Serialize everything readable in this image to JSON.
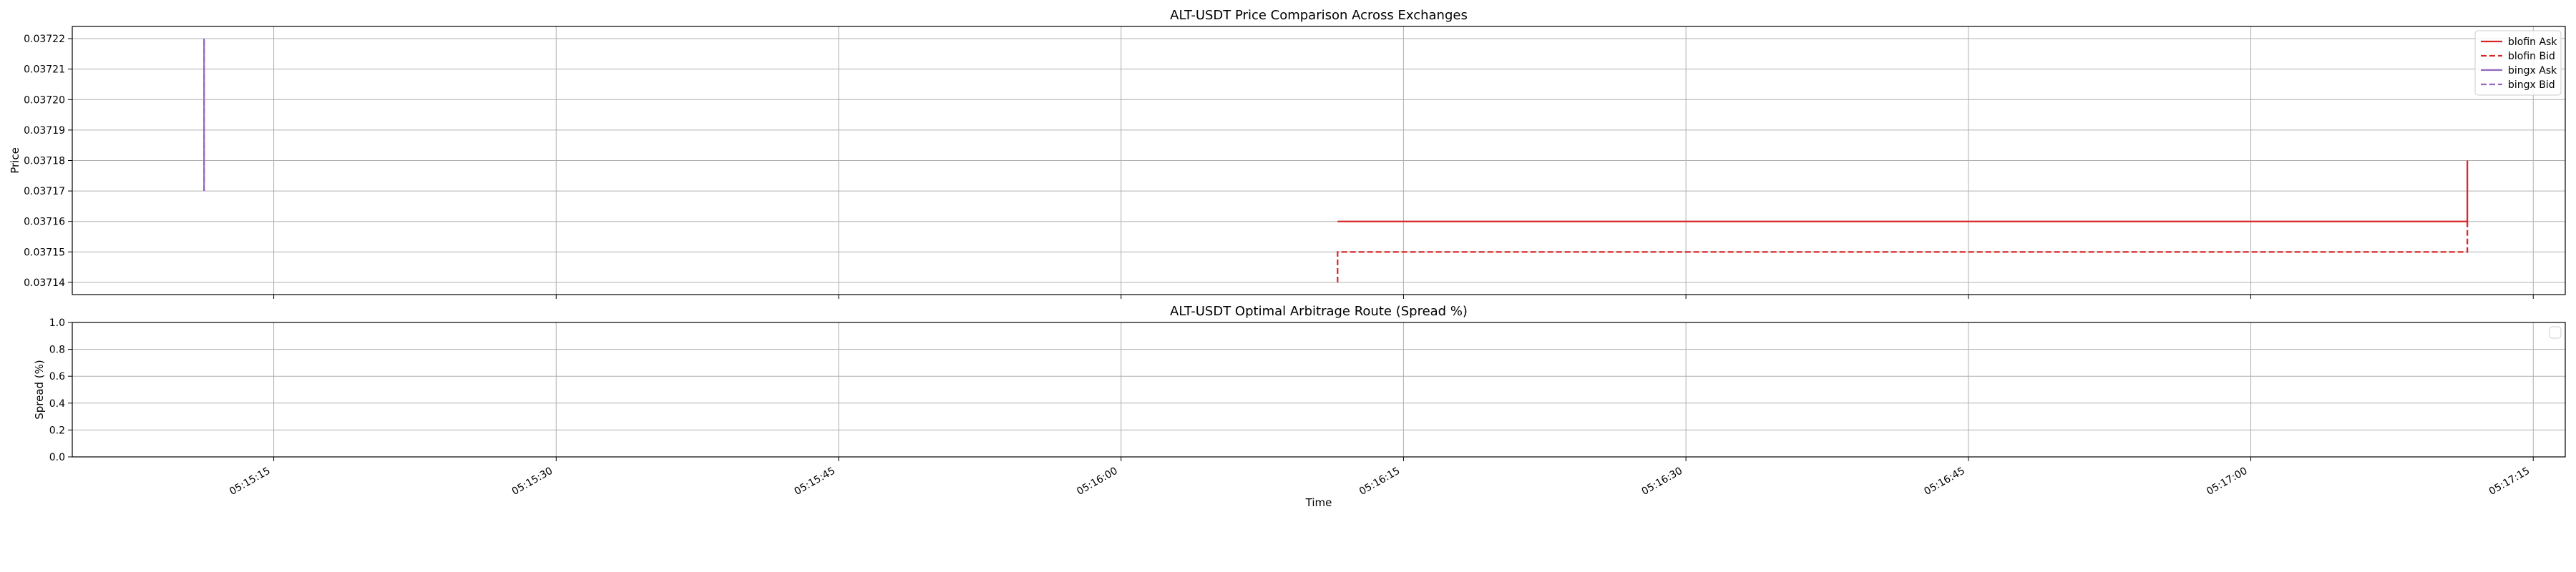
{
  "chart_data": [
    {
      "type": "line",
      "title": "ALT-USDT Price Comparison Across Exchanges",
      "xlabel": "",
      "ylabel": "Price",
      "x_ticks": [
        "05:15:15",
        "05:15:30",
        "05:15:45",
        "05:16:00",
        "05:16:15",
        "05:16:30",
        "05:16:45",
        "05:17:00",
        "05:17:15"
      ],
      "y_ticks": [
        "0.03714",
        "0.03715",
        "0.03716",
        "0.03717",
        "0.03718",
        "0.03719",
        "0.03720",
        "0.03721",
        "0.03722"
      ],
      "ylim": [
        0.037136,
        0.037224
      ],
      "xlim": [
        "05:15:04.3",
        "05:17:16.7"
      ],
      "grid": true,
      "legend_position": "top-right",
      "series": [
        {
          "name": "blofin Ask",
          "color": "#d62728",
          "dash": "solid",
          "points": [
            {
              "x": "05:16:11.5",
              "y": 0.03716
            },
            {
              "x": "05:17:11.5",
              "y": 0.03716
            },
            {
              "x": "05:17:11.5",
              "y": 0.03718
            }
          ]
        },
        {
          "name": "blofin Bid",
          "color": "#d62728",
          "dash": "dashed",
          "points": [
            {
              "x": "05:16:11.5",
              "y": 0.03714
            },
            {
              "x": "05:16:11.5",
              "y": 0.03715
            },
            {
              "x": "05:17:11.5",
              "y": 0.03715
            },
            {
              "x": "05:17:11.5",
              "y": 0.03716
            }
          ]
        },
        {
          "name": "bingx Ask",
          "color": "#9467bd",
          "dash": "solid",
          "points": [
            {
              "x": "05:15:11.3",
              "y": 0.03717
            },
            {
              "x": "05:15:11.3",
              "y": 0.03722
            }
          ]
        },
        {
          "name": "bingx Bid",
          "color": "#9467bd",
          "dash": "dashed",
          "points": [
            {
              "x": "05:15:11.3",
              "y": 0.03717
            },
            {
              "x": "05:15:11.3",
              "y": 0.03722
            }
          ]
        }
      ]
    },
    {
      "type": "line",
      "title": "ALT-USDT Optimal Arbitrage Route (Spread %)",
      "xlabel": "Time",
      "ylabel": "Spread (%)",
      "x_ticks": [
        "05:15:15",
        "05:15:30",
        "05:15:45",
        "05:16:00",
        "05:16:15",
        "05:16:30",
        "05:16:45",
        "05:17:00",
        "05:17:15"
      ],
      "y_ticks": [
        "0.0",
        "0.2",
        "0.4",
        "0.6",
        "0.8",
        "1.0"
      ],
      "ylim": [
        0,
        1
      ],
      "xlim": [
        "05:15:04.3",
        "05:17:16.7"
      ],
      "grid": true,
      "legend_position": "top-right",
      "series": []
    }
  ]
}
